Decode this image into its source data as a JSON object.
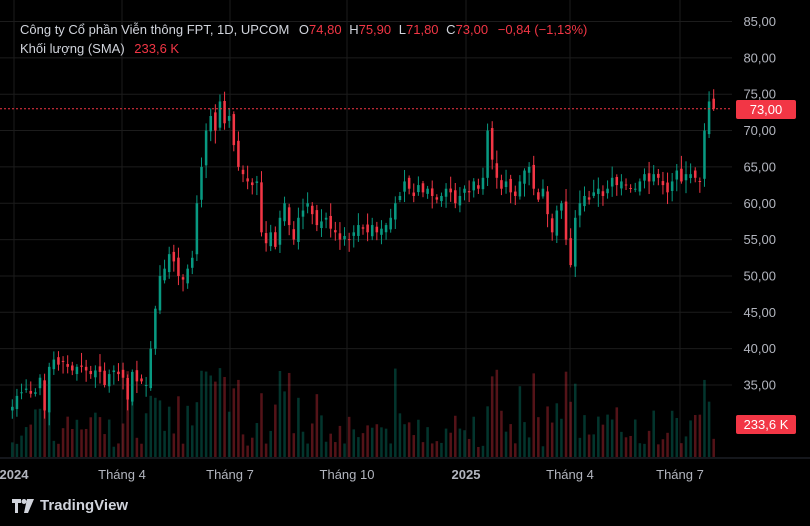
{
  "legend": {
    "symbol": "Công ty Cổ phần Viễn thông FPT, 1D, UPCOM",
    "o_label": "O",
    "o_value": "74,80",
    "h_label": "H",
    "h_value": "75,90",
    "l_label": "L",
    "l_value": "71,80",
    "c_label": "C",
    "c_value": "73,00",
    "change": "−0,84 (−1,13%)",
    "volume_label": "Khối lượng (SMA)",
    "volume_value": "233,6 K"
  },
  "price_tag": "73,00",
  "volume_tag": "233,6 K",
  "brand": "TradingView",
  "colors": {
    "up": "#089981",
    "down": "#f23645",
    "background": "#000000"
  },
  "chart_data": {
    "type": "candlestick",
    "ylim": [
      30,
      85
    ],
    "y_ticks": [
      "85,00",
      "80,00",
      "75,00",
      "70,00",
      "65,00",
      "60,00",
      "55,00",
      "50,00",
      "45,00",
      "40,00",
      "35,00"
    ],
    "x_ticks": [
      "2024",
      "Tháng 4",
      "Tháng 7",
      "Tháng 10",
      "2025",
      "Tháng 4",
      "Tháng 7"
    ],
    "last_price": 73.0,
    "series": [
      {
        "name": "close",
        "values": [
          32.0,
          33.5,
          34.0,
          34.5,
          33.8,
          34.0,
          36.0,
          31.5,
          37.5,
          38.5,
          37.8,
          38.2,
          37.5,
          37.0,
          37.5,
          37.5,
          37.0,
          36.5,
          37.0,
          36.8,
          35.0,
          36.5,
          37.0,
          36.5,
          36.0,
          33.0,
          36.8,
          35.5,
          35.5,
          35.0,
          40.0,
          45.5,
          50.0,
          51.0,
          53.0,
          52.0,
          50.0,
          49.5,
          51.0,
          52.5,
          60.0,
          65.0,
          70.0,
          72.0,
          70.0,
          74.0,
          71.0,
          72.0,
          68.0,
          65.0,
          64.0,
          63.0,
          62.5,
          63.0,
          56.0,
          54.5,
          56.0,
          54.0,
          58.0,
          60.0,
          57.0,
          55.0,
          58.0,
          59.0,
          60.0,
          58.5,
          57.0,
          57.5,
          58.0,
          56.5,
          56.0,
          55.0,
          55.5,
          55.0,
          56.0,
          57.0,
          56.5,
          56.0,
          57.0,
          56.0,
          56.5,
          57.0,
          58.0,
          60.0,
          61.0,
          63.0,
          62.0,
          61.0,
          62.5,
          61.5,
          62.0,
          61.0,
          60.5,
          61.0,
          62.0,
          61.5,
          60.0,
          61.0,
          62.0,
          61.5,
          63.0,
          62.0,
          63.5,
          70.0,
          66.0,
          63.5,
          62.0,
          63.0,
          61.5,
          61.0,
          63.0,
          64.5,
          65.0,
          62.0,
          60.5,
          62.0,
          58.5,
          56.0,
          59.0,
          60.0,
          55.0,
          51.5,
          58.0,
          60.0,
          61.0,
          60.5,
          61.5,
          62.0,
          61.0,
          62.0,
          63.5,
          62.5,
          63.0,
          62.5,
          62.0,
          62.0,
          63.0,
          64.0,
          63.0,
          64.0,
          63.5,
          62.5,
          61.5,
          63.0,
          64.5,
          63.0,
          64.0,
          64.0,
          63.5,
          63.0,
          70.0,
          74.0,
          73.0
        ]
      }
    ]
  }
}
